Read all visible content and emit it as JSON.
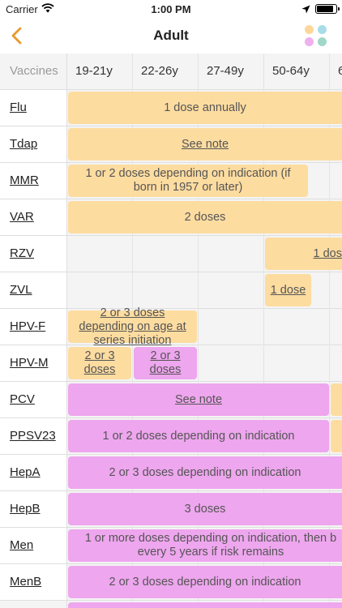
{
  "status_bar": {
    "carrier": "Carrier",
    "time": "1:00 PM",
    "battery_level": 0.9
  },
  "nav": {
    "title": "Adult",
    "back_icon": "chevron-left-icon",
    "legend_icon": "color-dots-icon",
    "accent_color": "#e69a2e",
    "legend_dot_colors": [
      "#fdd79a",
      "#a7dde8",
      "#efb0ef",
      "#9fd8c8"
    ]
  },
  "table": {
    "corner_label": "Vaccines",
    "columns": [
      "19-21y",
      "22-26y",
      "27-49y",
      "50-64y",
      "6"
    ],
    "rows": [
      {
        "name": "Flu",
        "bars": [
          {
            "text": "1 dose annually",
            "underline": false
          }
        ]
      },
      {
        "name": "Tdap",
        "bars": [
          {
            "text": "See note",
            "underline": true
          }
        ]
      },
      {
        "name": "MMR",
        "bars": [
          {
            "text": "1 or 2 doses depending on indication (if born in 1957 or later)",
            "underline": false
          }
        ]
      },
      {
        "name": "VAR",
        "bars": [
          {
            "text": "2 doses",
            "underline": false
          }
        ]
      },
      {
        "name": "RZV",
        "bars": [
          {
            "text": "1 dos",
            "underline": true
          }
        ]
      },
      {
        "name": "ZVL",
        "bars": [
          {
            "text": "1 dose",
            "underline": true
          }
        ]
      },
      {
        "name": "HPV-F",
        "bars": [
          {
            "text": "2 or 3 doses depending on age at series initiation",
            "underline": true
          }
        ]
      },
      {
        "name": "HPV-M",
        "bars": [
          {
            "text": "2 or 3 doses",
            "underline": true
          },
          {
            "text": "2 or 3 doses",
            "underline": true
          }
        ]
      },
      {
        "name": "PCV",
        "bars": [
          {
            "text": "See note",
            "underline": true
          }
        ]
      },
      {
        "name": "PPSV23",
        "bars": [
          {
            "text": "1 or 2 doses depending on indication",
            "underline": false
          }
        ]
      },
      {
        "name": "HepA",
        "bars": [
          {
            "text": "2 or 3 doses depending on indication",
            "underline": false
          }
        ]
      },
      {
        "name": "HepB",
        "bars": [
          {
            "text": "3 doses",
            "underline": false
          }
        ]
      },
      {
        "name": "Men",
        "bars": [
          {
            "text": "1 or more doses depending on indication, then b every 5 years if risk remains",
            "underline": false
          }
        ]
      },
      {
        "name": "MenB",
        "bars": [
          {
            "text": "2 or 3 doses depending on indication",
            "underline": false
          }
        ]
      }
    ]
  }
}
